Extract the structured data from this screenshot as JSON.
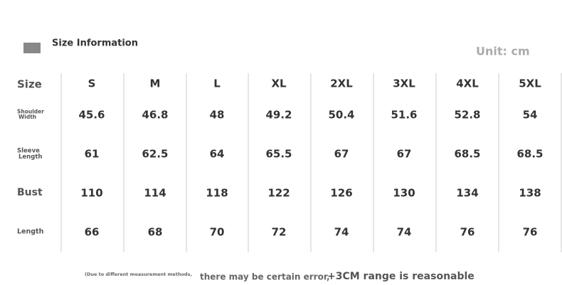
{
  "header": {
    "title": "Size Information",
    "unit": "Unit: cm"
  },
  "table": {
    "corner": "Size",
    "columns": [
      "S",
      "M",
      "L",
      "XL",
      "2XL",
      "3XL",
      "4XL",
      "5XL"
    ],
    "rows": [
      {
        "label": [
          "Shoulder",
          "Width"
        ],
        "values": [
          45.6,
          46.8,
          48,
          49.2,
          50.4,
          51.6,
          52.8,
          54
        ]
      },
      {
        "label": [
          "Sleeve",
          "Length"
        ],
        "values": [
          61,
          62.5,
          64,
          65.5,
          67,
          67,
          68.5,
          68.5
        ]
      },
      {
        "label": [
          "Bust"
        ],
        "values": [
          110,
          114,
          118,
          122,
          126,
          130,
          134,
          138
        ]
      },
      {
        "label": [
          "Length"
        ],
        "values": [
          66,
          68,
          70,
          72,
          74,
          74,
          76,
          76
        ]
      }
    ]
  },
  "footer": {
    "note": "(Due to different measurement methods,",
    "text": "there may be certain error,",
    "range": "+3CM range is reasonable"
  }
}
